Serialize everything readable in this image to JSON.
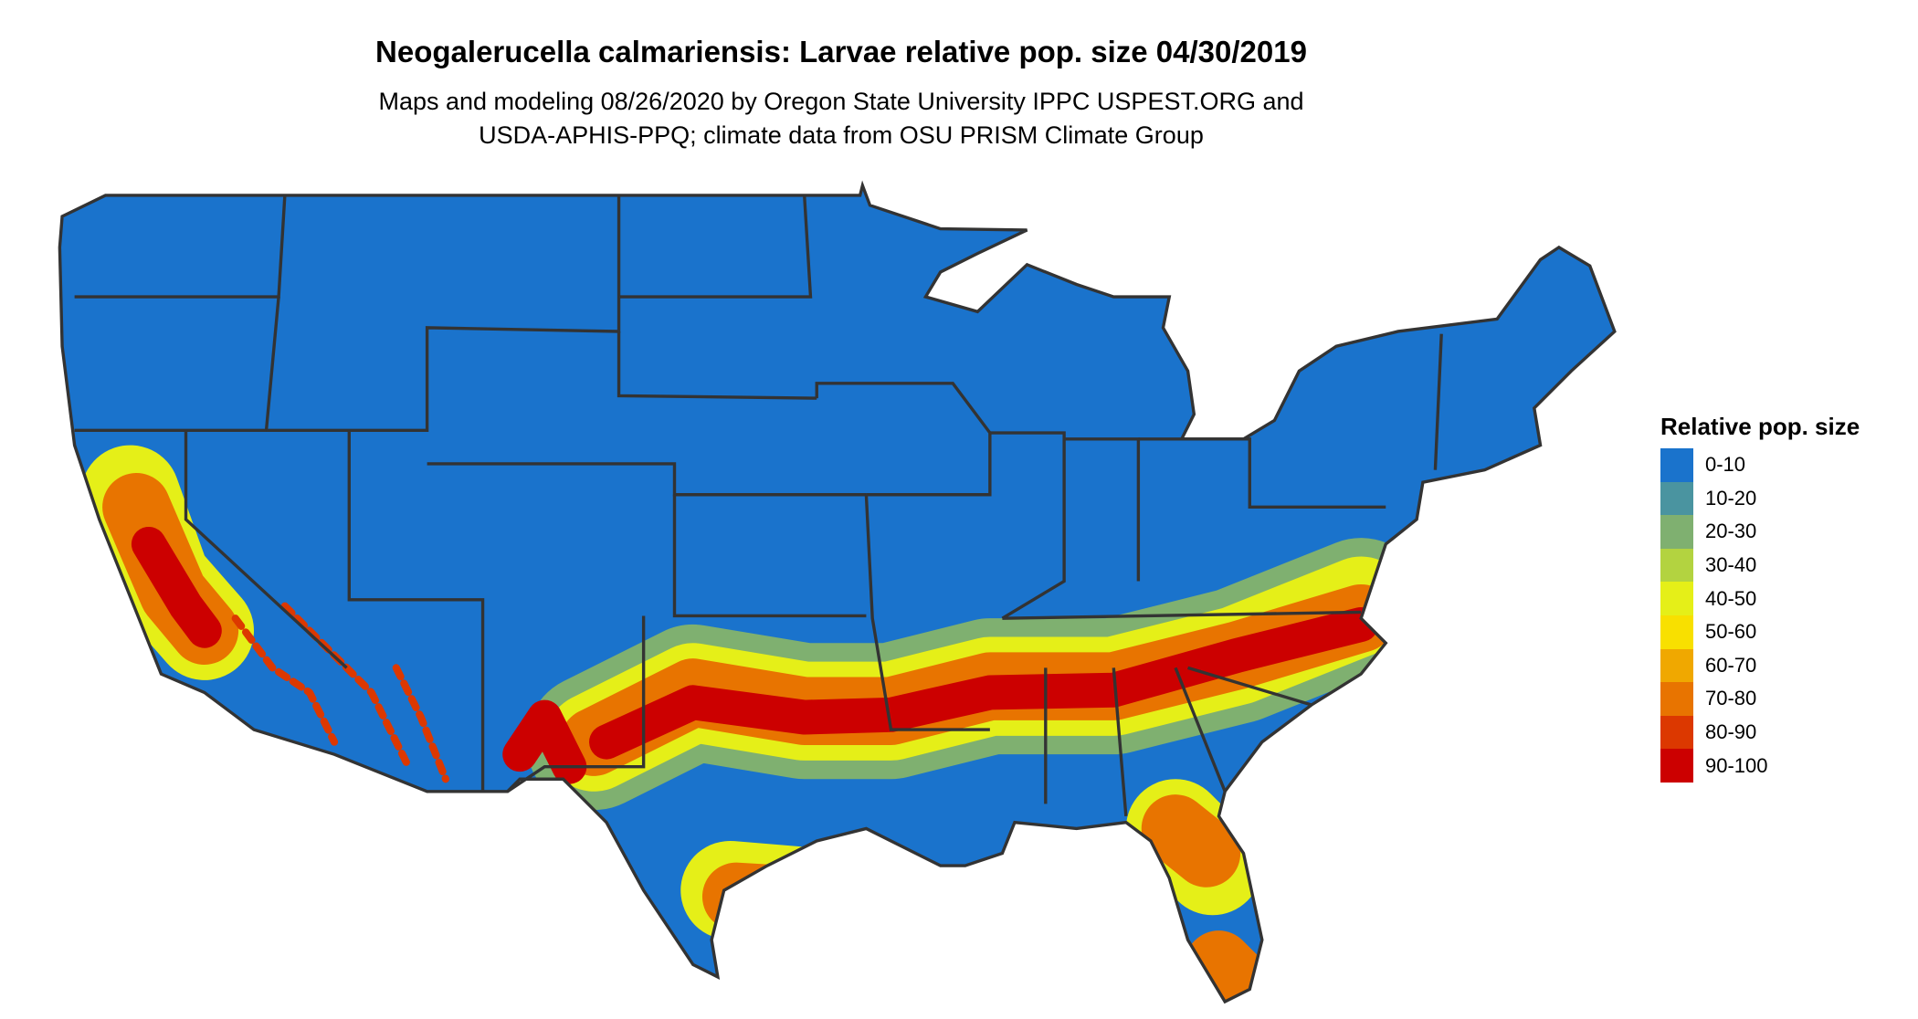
{
  "title": "Neogalerucella calmariensis: Larvae relative pop. size 04/30/2019",
  "subtitle_lines": [
    "Maps and modeling 08/26/2020 by Oregon State University IPPC USPEST.ORG and",
    "USDA-APHIS-PPQ; climate data from OSU PRISM Climate Group"
  ],
  "map": {
    "region": "Contiguous United States",
    "state_border_color": "#333333"
  },
  "legend": {
    "title": "Relative pop. size",
    "items": [
      {
        "label": "0-10",
        "color": "#1a73cc"
      },
      {
        "label": "10-20",
        "color": "#4a94a0"
      },
      {
        "label": "20-30",
        "color": "#7fb070"
      },
      {
        "label": "30-40",
        "color": "#b3d340"
      },
      {
        "label": "40-50",
        "color": "#e5ef18"
      },
      {
        "label": "50-60",
        "color": "#f8e000"
      },
      {
        "label": "60-70",
        "color": "#f0a800"
      },
      {
        "label": "70-80",
        "color": "#e87400"
      },
      {
        "label": "80-90",
        "color": "#dc3800"
      },
      {
        "label": "90-100",
        "color": "#cc0000"
      }
    ]
  }
}
